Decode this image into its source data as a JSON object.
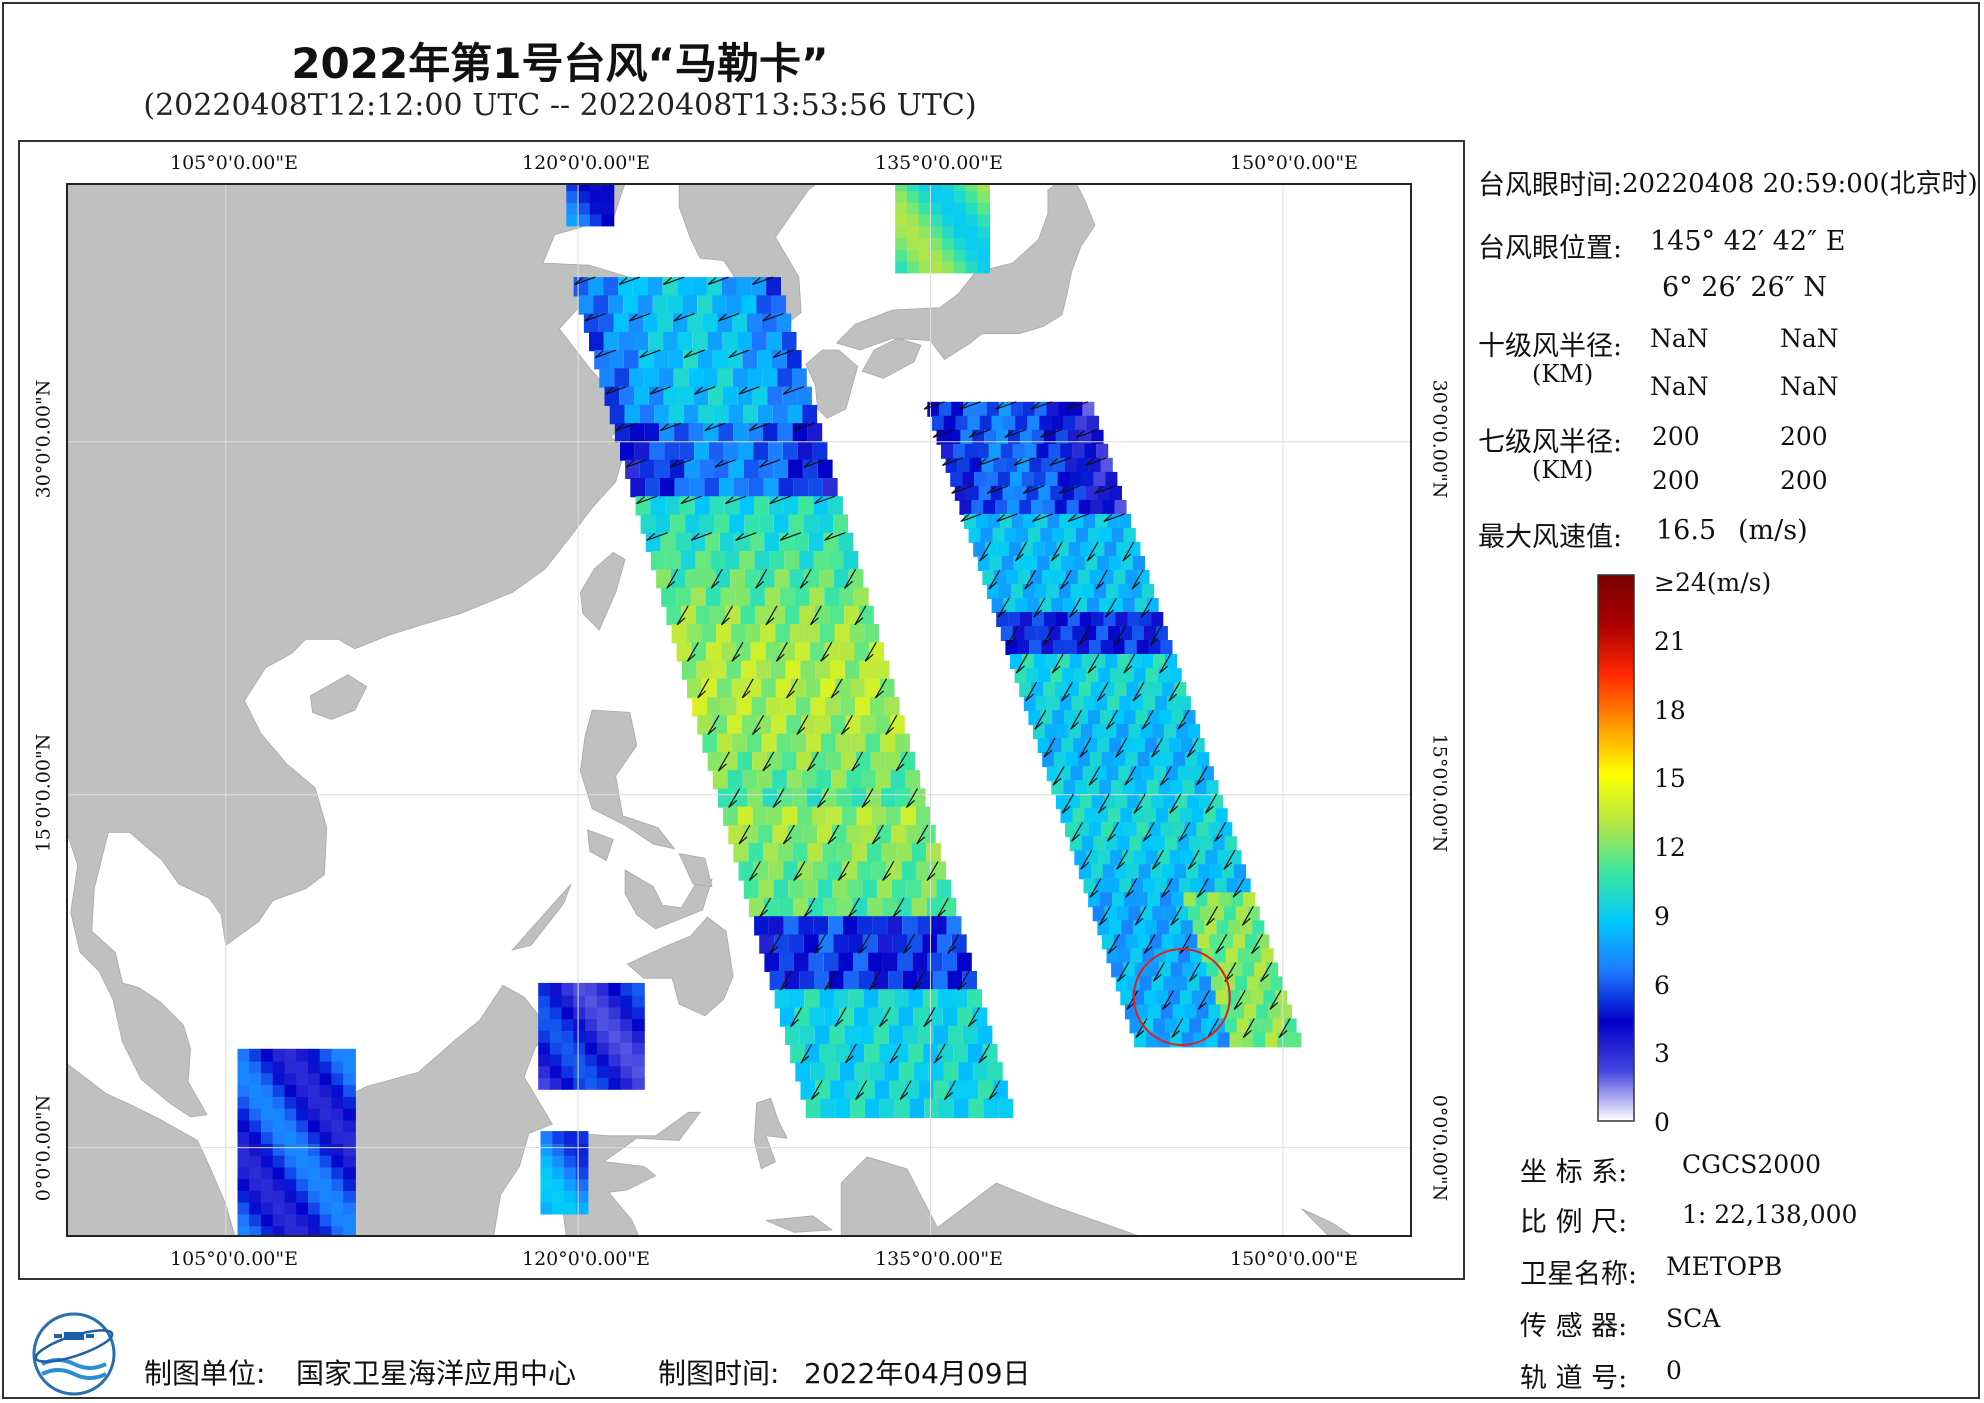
{
  "header": {
    "title": "2022年第1号台风“马勒卡”",
    "subtitle": "(20220408T12:12:00 UTC -- 20220408T13:53:56 UTC)"
  },
  "map": {
    "lon_labels": [
      "105°0'0.00\"E",
      "120°0'0.00\"E",
      "135°0'0.00\"E",
      "150°0'0.00\"E"
    ],
    "lat_labels": [
      "30°0'0.00\"N",
      "15°0'0.00\"N",
      "0°0'0.00\"N"
    ],
    "lon_values": [
      105,
      120,
      135,
      150
    ],
    "lat_values": [
      30,
      15,
      0
    ],
    "lon_range": [
      98.2,
      155.5
    ],
    "lat_range": [
      -3.8,
      41.0
    ],
    "typhoon_eye": {
      "lon": 145.7,
      "lat": 6.4
    },
    "colors": {
      "land": "#c0c0c0",
      "ocean": "#ffffff",
      "eye_circle": "#e02020"
    }
  },
  "info": {
    "eye_time_label": "台风眼时间:",
    "eye_time_value": "20220408 20:59:00(北京时)",
    "eye_pos_label": "台风眼位置:",
    "eye_pos_lon": "145° 42′ 42″ E",
    "eye_pos_lat": "6° 26′ 26″ N",
    "r10_label": "十级风半径:",
    "r10_unit": "(KM)",
    "r10_values": [
      "NaN",
      "NaN",
      "NaN",
      "NaN"
    ],
    "r7_label": "七级风半径:",
    "r7_unit": "(KM)",
    "r7_values": [
      "200",
      "200",
      "200",
      "200"
    ],
    "max_wind_label": "最大风速值:",
    "max_wind_value": "16.5",
    "max_wind_unit": "(m/s)"
  },
  "colorbar": {
    "labels": [
      "≥24(m/s)",
      "21",
      "18",
      "15",
      "12",
      "9",
      "6",
      "3",
      "0"
    ],
    "values": [
      24,
      21,
      18,
      15,
      12,
      9,
      6,
      3,
      0
    ],
    "stops": [
      "#ffffff",
      "#4646e0",
      "#0000c8",
      "#1e78ff",
      "#00c8ff",
      "#3ce6a0",
      "#b4e646",
      "#ffff00",
      "#ff9600",
      "#ff2800",
      "#aa0000",
      "#780000"
    ]
  },
  "meta": {
    "crs_label": "坐 标 系:",
    "crs_value": "CGCS2000",
    "scale_label": "比 例 尺:",
    "scale_value": "1: 22,138,000",
    "sat_label": "卫星名称:",
    "sat_value": "METOPB",
    "sensor_label": "传 感 器:",
    "sensor_value": "SCA",
    "orbit_label": "轨 道 号:",
    "orbit_value": "0"
  },
  "footer": {
    "unit_label": "制图单位:",
    "unit_value": "国家卫星海洋应用中心",
    "time_label": "制图时间:",
    "time_value": "2022年04月09日"
  }
}
